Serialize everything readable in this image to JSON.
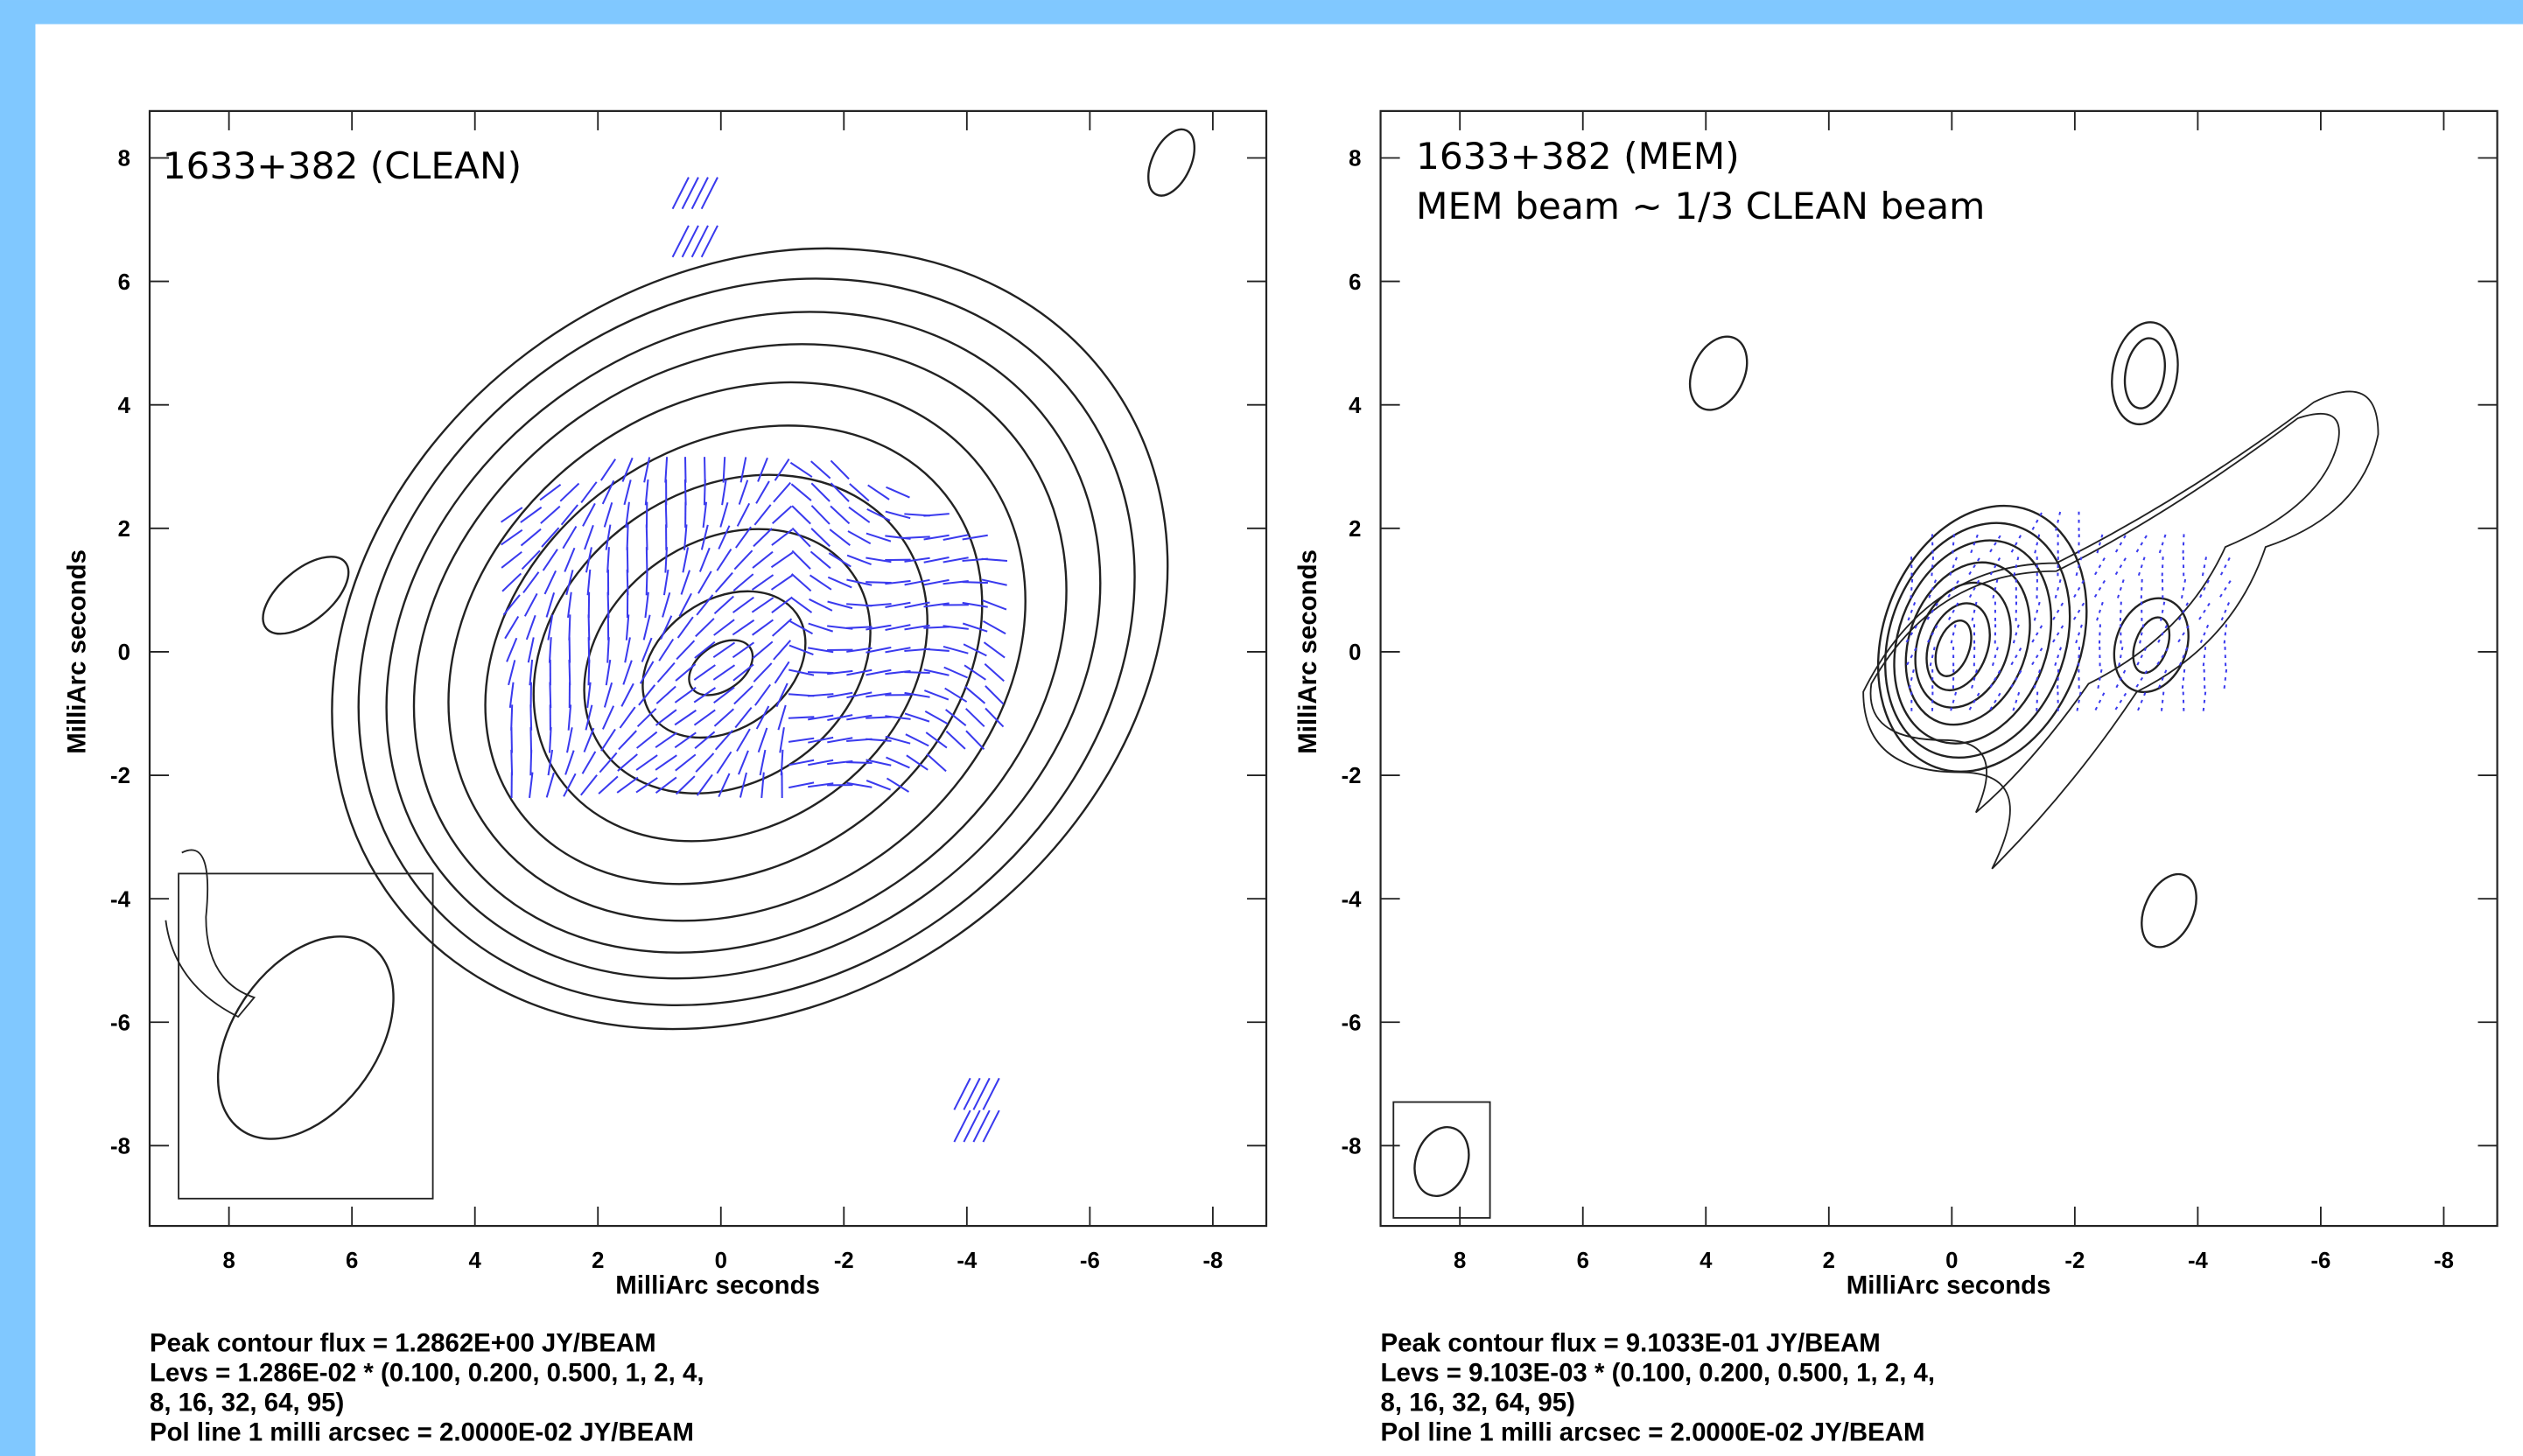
{
  "chart_data": [
    {
      "type": "contour",
      "title": "1633+382 (CLEAN)",
      "xlabel": "MilliArc seconds",
      "ylabel": "MilliArc seconds",
      "xlim": [
        9.29,
        -8.87
      ],
      "ylim": [
        -9.3,
        8.76
      ],
      "xticks": [
        8,
        6,
        4,
        2,
        0,
        -2,
        -4,
        -6,
        -8
      ],
      "yticks": [
        -8,
        -6,
        -4,
        -2,
        0,
        2,
        4,
        6,
        8
      ],
      "notes": [
        "Peak contour flux =  1.2862E+00 JY/BEAM",
        "Levs = 1.286E-02 * (0.100, 0.200, 0.500, 1, 2, 4,",
        "8, 16, 32, 64, 95)",
        "Pol line 1 milli arcsec =  2.0000E-02 JY/BEAM"
      ]
    },
    {
      "type": "contour",
      "title": "1633+382 (MEM)",
      "subtitle": "MEM beam ~ 1/3 CLEAN beam",
      "xlabel": "MilliArc seconds",
      "ylabel": "MilliArc seconds",
      "xlim": [
        9.29,
        -8.87
      ],
      "ylim": [
        -9.3,
        8.76
      ],
      "xticks": [
        8,
        6,
        4,
        2,
        0,
        -2,
        -4,
        -6,
        -8
      ],
      "yticks": [
        -8,
        -6,
        -4,
        -2,
        0,
        2,
        4,
        6,
        8
      ],
      "notes": [
        "Peak contour flux =  9.1033E-01 JY/BEAM",
        "Levs = 9.103E-03 * (0.100, 0.200, 0.500, 1, 2, 4,",
        "8, 16, 32, 64, 95)",
        "Pol line 1 milli arcsec =  2.0000E-02 JY/BEAM"
      ]
    }
  ]
}
